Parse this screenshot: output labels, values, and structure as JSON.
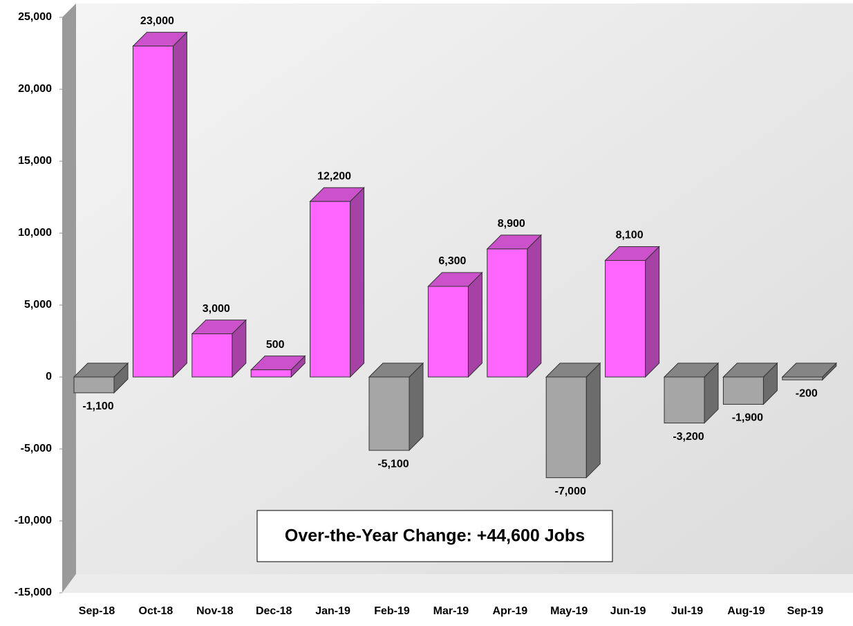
{
  "chart_data": {
    "type": "bar3d",
    "categories": [
      "Sep-18",
      "Oct-18",
      "Nov-18",
      "Dec-18",
      "Jan-19",
      "Feb-19",
      "Mar-19",
      "Apr-19",
      "May-19",
      "Jun-19",
      "Jul-19",
      "Aug-19",
      "Sep-19"
    ],
    "values": [
      -1100,
      23000,
      3000,
      500,
      12200,
      -5100,
      6300,
      8900,
      -7000,
      8100,
      -3200,
      -1900,
      -200
    ],
    "value_labels": [
      "-1,100",
      "23,000",
      "3,000",
      "500",
      "12,200",
      "-5,100",
      "6,300",
      "8,900",
      "-7,000",
      "8,100",
      "-3,200",
      "-1,900",
      "-200"
    ],
    "positive_color": "#ff66ff",
    "negative_color": "#a6a6a6",
    "ylim": [
      -15000,
      25000
    ],
    "yticks": [
      {
        "value": -15000,
        "label": "-15,000"
      },
      {
        "value": -10000,
        "label": "-10,000"
      },
      {
        "value": -5000,
        "label": "-5,000"
      },
      0,
      {
        "value": 5000,
        "label": "5,000"
      },
      {
        "value": 10000,
        "label": "10,000"
      },
      {
        "value": 15000,
        "label": "15,000"
      },
      {
        "value": 20000,
        "label": "20,000"
      },
      {
        "value": 25000,
        "label": "25,000"
      }
    ],
    "annotation": "Over-the-Year Change: +44,600 Jobs"
  }
}
